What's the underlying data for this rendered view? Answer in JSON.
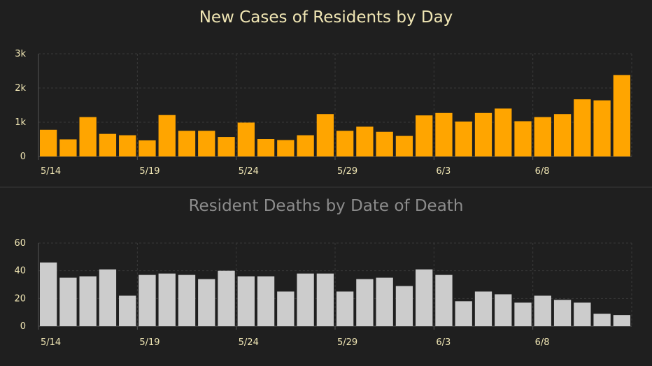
{
  "colors": {
    "background": "#1f1f1f",
    "grid": "#3a3a3a",
    "axis": "#555555",
    "divider": "#3a3a3a"
  },
  "chart_data": [
    {
      "type": "bar",
      "title": "New Cases of Residents by Day",
      "title_color": "#f0e6b4",
      "tick_color": "#f0e6b4",
      "bar_color": "#ffa500",
      "grid": true,
      "ylim": [
        0,
        3000
      ],
      "yticks": [
        0,
        1000,
        2000,
        3000
      ],
      "ytick_labels": [
        "0",
        "1k",
        "2k",
        "3k"
      ],
      "xtick_labels": [
        "5/14",
        "5/19",
        "5/24",
        "5/29",
        "6/3",
        "6/8"
      ],
      "xtick_every": 5,
      "values": [
        780,
        500,
        1150,
        660,
        620,
        470,
        1210,
        750,
        750,
        570,
        990,
        510,
        480,
        620,
        1240,
        750,
        870,
        720,
        600,
        1200,
        1270,
        1020,
        1270,
        1400,
        1030,
        1150,
        1240,
        1670,
        1640,
        2380
      ]
    },
    {
      "type": "bar",
      "title": "Resident Deaths by Date of Death",
      "title_color": "#8c8c8c",
      "tick_color": "#f0e6b4",
      "bar_color": "#cccccc",
      "grid": true,
      "ylim": [
        0,
        60
      ],
      "yticks": [
        0,
        20,
        40,
        60
      ],
      "ytick_labels": [
        "0",
        "20",
        "40",
        "60"
      ],
      "xtick_labels": [
        "5/14",
        "5/19",
        "5/24",
        "5/29",
        "6/3",
        "6/8"
      ],
      "xtick_every": 5,
      "values": [
        46,
        35,
        36,
        41,
        22,
        37,
        38,
        37,
        34,
        40,
        36,
        36,
        25,
        38,
        38,
        25,
        34,
        35,
        29,
        41,
        37,
        18,
        25,
        23,
        17,
        22,
        19,
        17,
        9,
        8
      ]
    }
  ]
}
